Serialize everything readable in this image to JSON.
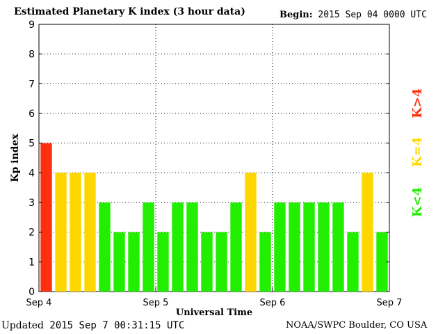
{
  "header": {
    "title": "Estimated Planetary K index (3 hour data)",
    "begin_label": "Begin:",
    "begin_value": "2015 Sep 04 0000 UTC"
  },
  "footer": {
    "updated_label": "Updated",
    "updated_value": "2015 Sep  7 00:31:15 UTC",
    "credit": "NOAA/SWPC Boulder, CO USA"
  },
  "legend": [
    {
      "label": "K>4",
      "color": "#ff3010"
    },
    {
      "label": "K=4",
      "color": "#ffd700"
    },
    {
      "label": "K<4",
      "color": "#22ee00"
    }
  ],
  "colors": {
    "storm": "#ff3010",
    "active": "#ffd700",
    "quiet": "#22ee00"
  },
  "chart_data": {
    "type": "bar",
    "xlabel": "Universal Time",
    "ylabel": "Kp index",
    "ylim": [
      0,
      9
    ],
    "yticks": [
      "0",
      "1",
      "2",
      "3",
      "4",
      "5",
      "6",
      "7",
      "8",
      "9"
    ],
    "xticks": [
      "Sep 4",
      "Sep 5",
      "Sep 6",
      "Sep 7"
    ],
    "grid": true,
    "values": [
      5,
      4,
      4,
      4,
      3,
      2,
      2,
      3,
      2,
      3,
      3,
      2,
      2,
      3,
      4,
      2,
      3,
      3,
      3,
      3,
      3,
      2,
      4,
      2
    ]
  }
}
